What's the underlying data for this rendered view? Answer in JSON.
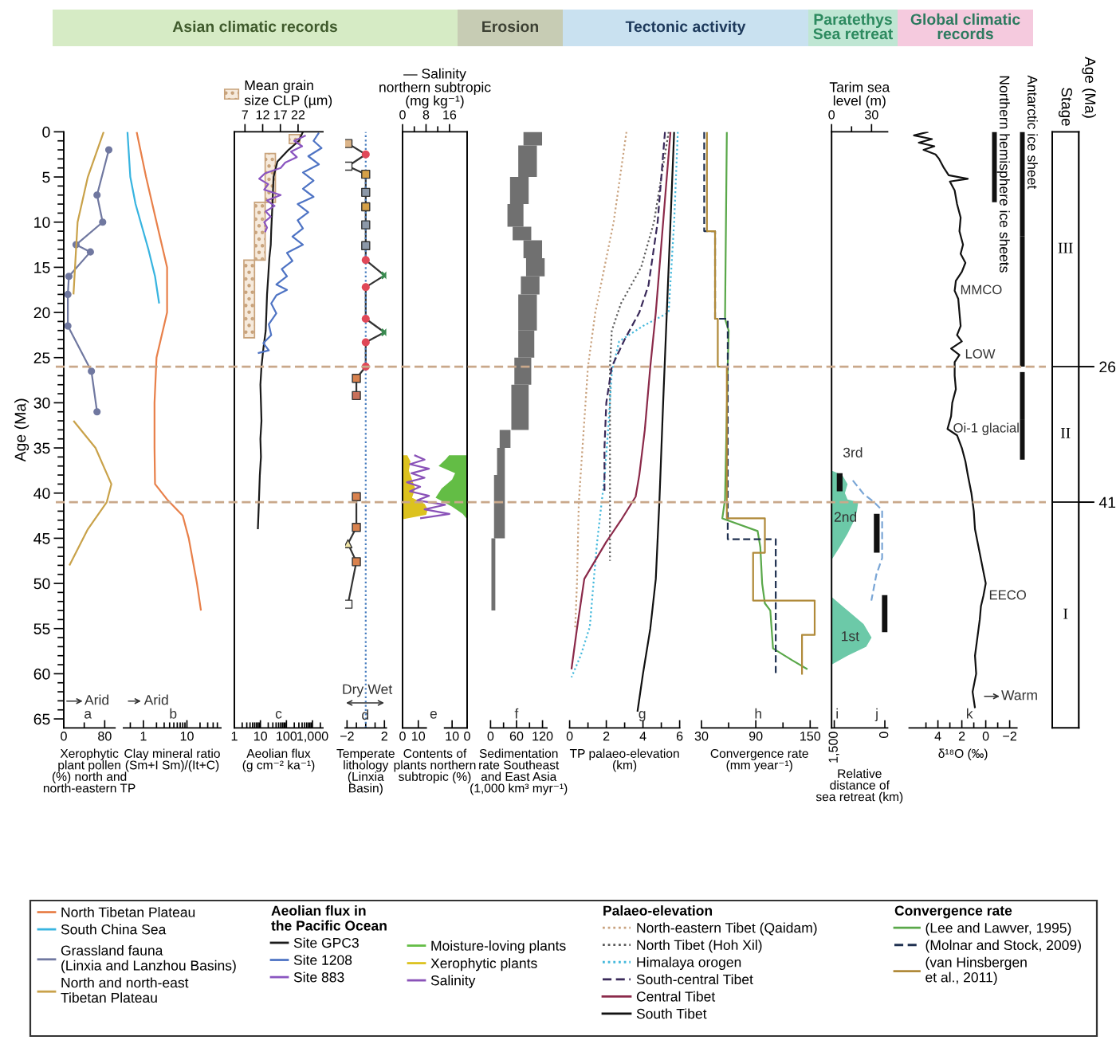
{
  "chart_data": [
    {
      "type": "line",
      "orientation": "horizontal",
      "ylabel": "Age (Ma)",
      "xlabel": "Xerophytic\nplant pollen\n(%) north and\nnorth-eastern TP",
      "xlim": [
        0,
        100
      ],
      "xticks": [
        0,
        {
          "value": 40,
          "label": null
        },
        80
      ],
      "ylim": [
        66,
        0
      ],
      "yticks": [
        0,
        {
          "value": 1,
          "label": null
        },
        {
          "value": 2,
          "label": null
        },
        {
          "value": 3,
          "label": null
        },
        {
          "value": 4,
          "label": null
        },
        5,
        {
          "value": 6,
          "label": null
        },
        {
          "value": 7,
          "label": null
        },
        {
          "value": 8,
          "label": null
        },
        {
          "value": 9,
          "label": null
        },
        10,
        {
          "value": 11,
          "label": null
        },
        {
          "value": 12,
          "label": null
        },
        {
          "value": 13,
          "label": null
        },
        {
          "value": 14,
          "label": null
        },
        15,
        {
          "value": 16,
          "label": null
        },
        {
          "value": 17,
          "label": null
        },
        {
          "value": 18,
          "label": null
        },
        {
          "value": 19,
          "label": null
        },
        20,
        {
          "value": 21,
          "label": null
        },
        {
          "value": 22,
          "label": null
        },
        {
          "value": 23,
          "label": null
        },
        {
          "value": 24,
          "label": null
        },
        25,
        {
          "value": 26,
          "label": null
        },
        {
          "value": 27,
          "label": null
        },
        {
          "value": 28,
          "label": null
        },
        {
          "value": 29,
          "label": null
        },
        30,
        {
          "value": 31,
          "label": null
        },
        {
          "value": 32,
          "label": null
        },
        {
          "value": 33,
          "label": null
        },
        {
          "value": 34,
          "label": null
        },
        35,
        {
          "value": 36,
          "label": null
        },
        {
          "value": 37,
          "label": null
        },
        {
          "value": 38,
          "label": null
        },
        {
          "value": 39,
          "label": null
        },
        40,
        {
          "value": 41,
          "label": null
        },
        {
          "value": 42,
          "label": null
        },
        {
          "value": 43,
          "label": null
        },
        {
          "value": 44,
          "label": null
        },
        45,
        {
          "value": 46,
          "label": null
        },
        {
          "value": 47,
          "label": null
        },
        {
          "value": 48,
          "label": null
        },
        {
          "value": 49,
          "label": null
        },
        50,
        {
          "value": 51,
          "label": null
        },
        {
          "value": 52,
          "label": null
        },
        {
          "value": 53,
          "label": null
        },
        {
          "value": 54,
          "label": null
        },
        55,
        {
          "value": 56,
          "label": null
        },
        {
          "value": 57,
          "label": null
        },
        {
          "value": 58,
          "label": null
        },
        {
          "value": 59,
          "label": null
        },
        60,
        {
          "value": 61,
          "label": null
        },
        {
          "value": 62,
          "label": null
        },
        {
          "value": 63,
          "label": null
        },
        {
          "value": 64,
          "label": null
        },
        65
      ],
      "legend": "bottom",
      "ref_lines": [
        {
          "axis": "y",
          "value": 26,
          "color": "#c9a88a",
          "line_style": "dashed"
        },
        {
          "axis": "y",
          "value": 41,
          "color": "#c9a88a",
          "line_style": "dashed"
        }
      ],
      "annotations": [
        "Arid",
        "a"
      ],
      "series": [
        {
          "name": "Grassland fauna\n(Linxia and Lanzhou Basins)",
          "color": "#7078a0",
          "marker": "circle",
          "x": [
            2,
            7,
            10,
            12.5,
            13.3,
            16,
            18,
            21.5,
            26.5,
            31
          ],
          "values": [
            88,
            65,
            76,
            24,
            52,
            10,
            8,
            8,
            54,
            65
          ]
        },
        {
          "name": "North and north-east\nTibetan Plateau",
          "color": "#c9a24a",
          "x": [
            0,
            5,
            10,
            15,
            18,
            25,
            32,
            35,
            39,
            41,
            44,
            48
          ],
          "values": [
            78,
            47,
            27,
            22,
            19,
            null,
            19,
            62,
            93,
            84,
            47,
            11
          ]
        }
      ]
    },
    {
      "type": "line",
      "orientation": "horizontal",
      "log": "x",
      "xlabel": "Clay mineral ratio\n(Sm+I Sm)/(It+C)",
      "xlim": [
        0.35,
        60
      ],
      "xticks": [
        {
          "value": 0.5,
          "label": null
        },
        1,
        {
          "value": 2,
          "label": null
        },
        {
          "value": 3,
          "label": null
        },
        {
          "value": 4,
          "label": null
        },
        {
          "value": 5,
          "label": null
        },
        {
          "value": 6,
          "label": null
        },
        {
          "value": 7,
          "label": null
        },
        {
          "value": 8,
          "label": null
        },
        {
          "value": 9,
          "label": null
        },
        10,
        {
          "value": 20,
          "label": null
        },
        {
          "value": 30,
          "label": null
        },
        {
          "value": 40,
          "label": null
        },
        {
          "value": 50,
          "label": null
        }
      ],
      "ylim": [
        66,
        0
      ],
      "tick_labels": "x",
      "legend": "bottom",
      "annotations": [
        "Arid",
        "b"
      ],
      "series": [
        {
          "name": "North Tibetan Plateau",
          "color": "#e8804a",
          "x": [
            0,
            5,
            10,
            15,
            20,
            25,
            30,
            35,
            39,
            40.7,
            42.5,
            45,
            50,
            53
          ],
          "values": [
            0.7,
            1.15,
            2.0,
            3.5,
            3.5,
            2.0,
            1.8,
            1.8,
            1.85,
            3.5,
            8,
            11,
            17,
            21
          ]
        },
        {
          "name": "South China Sea",
          "color": "#38b4e0",
          "x": [
            0,
            5,
            8,
            13,
            16,
            19
          ],
          "values": [
            0.43,
            0.5,
            0.66,
            1.3,
            1.85,
            2.3
          ]
        }
      ]
    },
    {
      "type": "line",
      "orientation": "horizontal",
      "log": "x",
      "title": "Asian climatic records",
      "xlabel": "Aeolian flux\n(g cm⁻² ka⁻¹)",
      "xlim": [
        1,
        2500
      ],
      "xticks": [
        1,
        {
          "value": 2,
          "label": null
        },
        {
          "value": 3,
          "label": null
        },
        {
          "value": 4,
          "label": null
        },
        {
          "value": 5,
          "label": null
        },
        {
          "value": 6,
          "label": null
        },
        {
          "value": 7,
          "label": null
        },
        {
          "value": 8,
          "label": null
        },
        {
          "value": 9,
          "label": null
        },
        10,
        {
          "value": 20,
          "label": null
        },
        {
          "value": 30,
          "label": null
        },
        {
          "value": 40,
          "label": null
        },
        {
          "value": 50,
          "label": null
        },
        {
          "value": 60,
          "label": null
        },
        {
          "value": 70,
          "label": null
        },
        {
          "value": 80,
          "label": null
        },
        {
          "value": 90,
          "label": null
        },
        100,
        {
          "value": 200,
          "label": null
        },
        {
          "value": 300,
          "label": null
        },
        {
          "value": 400,
          "label": null
        },
        {
          "value": 500,
          "label": null
        },
        {
          "value": 600,
          "label": null
        },
        {
          "value": 700,
          "label": null
        },
        {
          "value": 800,
          "label": null
        },
        {
          "value": 900,
          "label": null
        },
        {
          "value": 1000,
          "label": "1,000"
        },
        {
          "value": 2000,
          "label": null
        }
      ],
      "x2lim": [
        4,
        29
      ],
      "x2ticks": [
        7,
        12,
        17,
        22
      ],
      "ylim": [
        66,
        0
      ],
      "tick_labels": "x",
      "legend": "bottom",
      "legend_title": "Aeolian flux in\nthe Pacific Ocean",
      "annotations": [
        "c"
      ],
      "series": [
        {
          "name": "Site GPC3",
          "color": "#1a1a1a",
          "x": [
            0,
            1,
            2,
            3.3,
            5,
            7,
            9,
            11,
            12.5,
            14,
            16,
            18,
            20,
            22,
            24,
            26,
            28,
            30,
            32,
            34,
            36,
            38,
            40,
            42,
            44
          ],
          "values": [
            430,
            300,
            120,
            45,
            32,
            30,
            28,
            26,
            25,
            22,
            20,
            18,
            17,
            16,
            13,
            11,
            10,
            10.5,
            11,
            10,
            10.5,
            9.5,
            9,
            8.5,
            8
          ]
        },
        {
          "name": "Site 1208",
          "color": "#4f74c4",
          "x": [
            0.1,
            1.0,
            1.8,
            2.7,
            3.6,
            4.5,
            5.4,
            6.3,
            7.2,
            8.0,
            8.9,
            9.8,
            10.7,
            11.6,
            12.5,
            13.4,
            14.3,
            15.2,
            16.0,
            16.9,
            17.5,
            18.1,
            19.0,
            20.1,
            21.3,
            22.5,
            23.4,
            24.2,
            24.5
          ],
          "values": [
            1760,
            1100,
            2230,
            690,
            1760,
            430,
            1100,
            430,
            1100,
            270,
            690,
            270,
            430,
            170,
            430,
            105,
            170,
            66,
            105,
            41,
            105,
            41,
            26,
            41,
            21,
            26,
            13,
            21,
            8
          ]
        },
        {
          "name": "Site 883",
          "color": "#8a55c0",
          "x": [
            0.4,
            1.0,
            1.6,
            2.2,
            2.8,
            3.4,
            4.0,
            4.6,
            5.2,
            5.8,
            6.4,
            7.0,
            7.6,
            8.2,
            8.8,
            9.4,
            10.0,
            10.6,
            11.1
          ],
          "values": [
            550,
            200,
            400,
            150,
            250,
            90,
            60,
            15,
            9,
            20,
            14,
            60,
            18,
            35,
            16,
            25,
            14,
            18,
            15
          ]
        },
        {
          "name": "Mean grain\nsize CLP (µm)",
          "type": "histogram",
          "axis": "x2",
          "color": "#c8a27a",
          "bins": [
            0.3,
            1.3,
            2.4,
            7.8,
            14.2,
            22.8
          ],
          "base": [
            19.5,
            null,
            12.7,
            9.7,
            6.7
          ],
          "values": [
            3,
            null,
            2.9,
            3,
            3
          ]
        }
      ]
    },
    {
      "type": "scatter",
      "orientation": "horizontal",
      "xlabel": "Temperate\nlithology\n(Linxia\nBasin)",
      "xlim": [
        -2.2,
        2.2
      ],
      "xticks": [
        {
          "value": -2,
          "label": "−2"
        },
        {
          "value": -1,
          "label": null
        },
        {
          "value": 0,
          "label": null
        },
        {
          "value": 1,
          "label": null
        },
        2
      ],
      "ylim": [
        66,
        0
      ],
      "tick_labels": "x",
      "ref_lines": [
        {
          "axis": "x",
          "value": 0,
          "color": "#4a7fc0",
          "line_style": "dotted"
        }
      ],
      "annotations": [
        "Dry",
        "Wet",
        "d"
      ],
      "series": [
        {
          "type": "line",
          "color": "#333333",
          "marker": "none",
          "x": [
            1.3,
            2.5,
            3.8,
            4.7,
            6.7,
            8.3,
            10.3,
            12.6,
            14.2,
            15.9,
            17.2,
            20.7,
            22.2,
            23.3,
            26.0,
            27.3,
            29.2,
            35,
            40.4,
            43.8,
            45.6,
            47.6,
            52.3
          ],
          "values": [
            -1.9,
            0,
            -1.9,
            0,
            0,
            0,
            0,
            0,
            0,
            2.0,
            0,
            0,
            2.0,
            0,
            0,
            -1.0,
            -1.0,
            null,
            -1.0,
            -1.0,
            -1.9,
            -1.0,
            -1.9
          ]
        },
        {
          "marker": "square",
          "x": [
            1.3,
            3.8,
            4.7,
            6.7,
            8.3,
            10.3,
            12.6,
            27.3,
            29.2,
            40.4,
            43.8,
            47.6,
            52.3
          ],
          "values": [
            -1.9,
            -1.9,
            0,
            0,
            0,
            0,
            0,
            -1.0,
            -1.0,
            -1.0,
            -1.0,
            -1.0,
            -1.9
          ],
          "colors": [
            "#dcb58a",
            "#ffffff",
            "#d4a048",
            "#8c98a8",
            "#d4a048",
            "#8c98a8",
            "#8c98a8",
            "#d9824e",
            "#c8705a",
            "#d9824e",
            "#d9824e",
            "#d9824e",
            "#ffffff"
          ]
        },
        {
          "marker": "circle",
          "color": "#e04858",
          "x": [
            2.5,
            14.2,
            17.2,
            20.7,
            23.3,
            26.0
          ],
          "values": [
            0,
            0,
            0,
            0,
            0,
            0
          ]
        },
        {
          "marker": "cross",
          "color": "#3a8a50",
          "x": [
            15.9,
            22.2
          ],
          "values": [
            2.0,
            2.0
          ]
        },
        {
          "marker": "triangle",
          "color": "#f2e6a8",
          "x": [
            45.6
          ],
          "values": [
            -1.9
          ]
        }
      ]
    },
    {
      "type": "area",
      "orientation": "horizontal",
      "xlim": [
        43,
        0
      ],
      "xticks": [
        10,
        0
      ],
      "ylim": [
        66,
        0
      ],
      "tick_labels": "x",
      "legend": "bottom",
      "series": [
        {
          "name": "Moisture-loving plants",
          "color": "#63bd45",
          "x": [
            35.8,
            36.2,
            37,
            37.8,
            38.5,
            39.5,
            40.5,
            41.5,
            42.3,
            42.9
          ],
          "values": [
            12,
            14,
            19,
            8,
            10,
            17,
            21,
            10,
            3,
            0
          ]
        }
      ]
    },
    {
      "type": "area",
      "orientation": "horizontal",
      "xlabel": "Contents of\nplants northern\nsubtropic (%)",
      "xlim": [
        0,
        41
      ],
      "xticks": [
        0,
        10
      ],
      "x2lim": [
        0,
        22
      ],
      "x2ticks": [
        0,
        {
          "value": 4,
          "label": null
        },
        8,
        {
          "value": 12,
          "label": null
        },
        16
      ],
      "x2label": "— Salinity\nnorthern subtropic\n(mg kg⁻¹)",
      "ylim": [
        66,
        0
      ],
      "tick_labels": "x",
      "legend": "bottom",
      "annotations": [
        "e"
      ],
      "series": [
        {
          "name": "Xerophytic plants",
          "color": "#dcc21e",
          "x": [
            35.8,
            36.5,
            37.5,
            38.5,
            39.5,
            40.5,
            41.2,
            41.8,
            42.4,
            42.9
          ],
          "values": [
            3,
            5,
            4,
            6,
            8,
            6,
            14,
            16,
            15,
            0
          ]
        },
        {
          "name": "Salinity",
          "type": "line",
          "axis": "x2",
          "color": "#8a52b8",
          "x": [
            35.8,
            36.3,
            36.8,
            37.3,
            37.8,
            38.3,
            38.8,
            39.3,
            39.8,
            40.3,
            40.8,
            41.3,
            41.8,
            42.3,
            42.8
          ],
          "values": [
            4,
            7.5,
            2.5,
            9,
            3,
            7.5,
            1.5,
            6,
            2.5,
            9,
            5,
            14.5,
            7.5,
            16,
            6
          ]
        }
      ]
    },
    {
      "type": "histogram",
      "orientation": "horizontal",
      "title": "Erosion",
      "xlabel": "Sedimentation\nrate Southeast\nand East Asia\n(1,000 km³ myr⁻¹)",
      "xlim": [
        0,
        130
      ],
      "xticks": [
        0,
        {
          "value": 30,
          "label": null
        },
        60,
        {
          "value": 90,
          "label": null
        },
        120
      ],
      "ylim": [
        66,
        0
      ],
      "tick_labels": "x",
      "annotations": [
        "f"
      ],
      "color": "#707070",
      "bins": [
        0,
        1.5,
        5,
        8,
        10.5,
        12,
        14,
        16,
        18,
        22,
        25,
        28,
        33,
        35,
        38,
        45,
        53
      ],
      "base": [
        76,
        64,
        45,
        39,
        51,
        76,
        82,
        70,
        64,
        64,
        55,
        48,
        21,
        15,
        8,
        2
      ],
      "values": [
        43,
        43,
        43,
        37,
        43,
        43,
        43,
        43,
        43,
        37,
        39,
        40,
        25,
        18,
        25,
        9
      ]
    },
    {
      "type": "line",
      "orientation": "horizontal",
      "title": "Tectonic activity",
      "xlabel": "TP palaeo-elevation\n(km)",
      "xlim": [
        0,
        6
      ],
      "xticks": [
        0,
        {
          "value": 1,
          "label": null
        },
        2,
        {
          "value": 3,
          "label": null
        },
        4,
        {
          "value": 5,
          "label": null
        },
        6
      ],
      "ylim": [
        66,
        0
      ],
      "tick_labels": "x",
      "legend": "bottom",
      "legend_title": "Palaeo-elevation",
      "annotations": [
        "g"
      ],
      "series": [
        {
          "name": "North-eastern Tibet (Qaidam)",
          "color": "#c9a27e",
          "line_style": "dotted",
          "x": [
            0,
            10,
            20,
            26,
            35,
            41,
            50,
            55
          ],
          "values": [
            3.1,
            2.4,
            1.4,
            1.0,
            0.7,
            0.5,
            0.4,
            0.3
          ]
        },
        {
          "name": "North Tibet (Hoh Xil)",
          "color": "#5a5a5a",
          "line_style": "dotted",
          "x": [
            0,
            10,
            15,
            19,
            22,
            26,
            35,
            41,
            47.5
          ],
          "values": [
            5.4,
            4.6,
            3.9,
            2.8,
            2.3,
            2.2,
            2.2,
            2.2,
            2.2
          ]
        },
        {
          "name": "Himalaya orogen",
          "color": "#45b9dc",
          "line_style": "dotted",
          "x": [
            0,
            10,
            20,
            21.5,
            23.2,
            26.6,
            33,
            38.3,
            45.4,
            50,
            54.8,
            58,
            60.4
          ],
          "values": [
            5.9,
            5.7,
            5.4,
            4.0,
            2.7,
            2.3,
            2.1,
            1.9,
            1.5,
            1.3,
            1.1,
            0.6,
            0.1
          ]
        },
        {
          "name": "South-central Tibet",
          "color": "#3a2a5a",
          "line_style": "dashed",
          "x": [
            0,
            10,
            17,
            20,
            23,
            26,
            30,
            35,
            40
          ],
          "values": [
            5.2,
            4.8,
            4.3,
            3.8,
            3.0,
            2.3,
            2.0,
            1.9,
            1.9
          ]
        },
        {
          "name": "Central Tibet",
          "color": "#8b2a4a",
          "x": [
            0,
            10,
            20,
            26,
            33,
            38,
            40.4,
            43,
            45.4,
            49.5,
            55,
            59.5
          ],
          "values": [
            5.5,
            5.1,
            4.7,
            4.4,
            4.1,
            3.8,
            3.6,
            2.8,
            2.0,
            0.8,
            0.4,
            0.1
          ]
        },
        {
          "name": "South Tibet",
          "color": "#111111",
          "x": [
            0,
            10,
            20,
            30,
            40.7,
            49.5,
            55,
            60,
            64.2
          ],
          "values": [
            5.7,
            5.5,
            5.3,
            5.1,
            4.9,
            4.7,
            4.4,
            4.0,
            3.7
          ]
        }
      ]
    },
    {
      "type": "line",
      "orientation": "horizontal",
      "xlabel": "Convergence rate\n(mm year⁻¹)",
      "xlim": [
        30,
        158
      ],
      "xticks": [
        30,
        {
          "value": 60,
          "label": null
        },
        90,
        {
          "value": 120,
          "label": null
        },
        150
      ],
      "ylim": [
        66,
        0
      ],
      "tick_labels": "x",
      "legend": "bottom",
      "legend_title": "Convergence rate",
      "annotations": [
        "h"
      ],
      "series": [
        {
          "name": "(Lee and Lawver, 1995)",
          "color": "#5aa84a",
          "x": [
            0,
            20.7,
            22,
            26,
            40.7,
            42.8,
            44.2,
            46,
            50,
            52.2,
            53,
            57.2,
            58.5,
            59.5
          ],
          "values": [
            58,
            56,
            60,
            59,
            56,
            53,
            92,
            95,
            97,
            100,
            106,
            109,
            130,
            147
          ]
        },
        {
          "name": "(Molnar and Stock, 2009)",
          "color": "#1f3050",
          "line_style": "dashed",
          "x": [
            0,
            11,
            11,
            20.7,
            20.7,
            45.1,
            45.1,
            60.1
          ],
          "values": [
            33,
            33,
            45,
            45,
            59,
            59,
            112,
            112
          ]
        },
        {
          "name": "(van Hinsbergen\net al., 2011)",
          "color": "#b08a3a",
          "x": [
            0,
            11,
            11,
            20.7,
            20.7,
            26,
            26,
            42.8,
            42.8,
            46.6,
            46.6,
            51.9,
            51.9,
            55.7,
            55.7,
            60.1
          ],
          "values": [
            36,
            36,
            45,
            45,
            48,
            48,
            58,
            58,
            100,
            100,
            87,
            87,
            155,
            155,
            141,
            141
          ]
        }
      ]
    },
    {
      "type": "area",
      "orientation": "horizontal",
      "title": "Paratethys\nSea retreat",
      "xlabel": "Relative\ndistance of\nsea retreat (km)",
      "xlim": [
        1580,
        -80
      ],
      "xticks": [
        {
          "value": 1500,
          "label": "1,500"
        },
        0
      ],
      "x2lim": [
        0,
        42
      ],
      "x2ticks": [
        0,
        {
          "value": 15,
          "label": null
        },
        30
      ],
      "x2label": "Tarim sea\nlevel (m)",
      "ylim": [
        66,
        0
      ],
      "tick_labels": "x",
      "annotations": [
        "1st",
        "2nd",
        "3rd",
        "i",
        "j"
      ],
      "series": [
        {
          "axis": "x2",
          "color": "#6cc9a8",
          "x": [
            37.5,
            38,
            39,
            40,
            40.7,
            41,
            42,
            43,
            44.5,
            46,
            47.4,
            49,
            51.5,
            53,
            54.5,
            56,
            57,
            58,
            59
          ],
          "values": [
            0,
            8,
            12,
            10,
            12,
            20,
            19,
            17,
            12,
            6,
            0,
            null,
            0,
            12,
            24,
            30,
            26,
            12,
            0
          ]
        },
        {
          "type": "line",
          "color": "#7aa6d6",
          "line_style": "dashed",
          "x": [
            38.6,
            40.1,
            41,
            41.9,
            44,
            47.2,
            49,
            51.9
          ],
          "values": [
            950,
            630,
            320,
            80,
            80,
            80,
            250,
            400
          ]
        },
        {
          "type": "line",
          "color": "#111111",
          "x": [
            37.8,
            39.8,
            40.5,
            42.3,
            46.6,
            49,
            51.3,
            55.4
          ],
          "values": [
            1340,
            1340,
            null,
            240,
            240,
            null,
            0,
            0
          ]
        }
      ]
    },
    {
      "type": "line",
      "orientation": "horizontal",
      "title": "Global climatic\nrecords",
      "xlabel": "δ¹⁸O (‰)",
      "xlim": [
        6.4,
        -2.6
      ],
      "xticks": [
        {
          "value": 5,
          "label": null
        },
        4,
        {
          "value": 3,
          "label": null
        },
        2,
        {
          "value": 1,
          "label": null
        },
        0,
        {
          "value": -1,
          "label": null
        },
        {
          "value": -2,
          "label": "−2"
        }
      ],
      "ylim": [
        66,
        0
      ],
      "tick_labels": "x",
      "annotations": [
        {
          "text": "MMCO",
          "x": 2.6,
          "y": 17.6
        },
        {
          "text": "LOW",
          "x": 2.2,
          "y": 24.7
        },
        {
          "text": "Oi-1 glacial",
          "x": 3.2,
          "y": 32.9
        },
        {
          "text": "EECO",
          "x": 0.2,
          "y": 51.4
        },
        "Warm",
        "k"
      ],
      "series": [
        {
          "color": "#111111",
          "x": [
            0,
            0.4,
            0.8,
            1.2,
            1.6,
            2.0,
            2.5,
            3.0,
            4.0,
            4.8,
            5.2,
            5.5,
            6.5,
            8,
            9.5,
            11,
            12.5,
            13.5,
            14.5,
            15.5,
            16.5,
            17.6,
            18.5,
            20,
            21.5,
            22.5,
            23.2,
            24,
            24.7,
            25.5,
            27,
            28.5,
            30,
            31.5,
            32.9,
            33.6,
            35,
            36.5,
            38,
            40,
            42,
            44,
            46,
            48,
            50,
            51.4,
            52.5,
            54,
            56,
            58,
            60,
            62,
            63.8
          ],
          "values": [
            4.8,
            6.0,
            4.5,
            5.6,
            4.3,
            5.2,
            4.2,
            3.9,
            3.5,
            3.1,
            1.5,
            3.0,
            2.6,
            2.4,
            2.1,
            2.2,
            1.9,
            2.1,
            1.7,
            2.0,
            2.5,
            2.6,
            2.3,
            2.2,
            2.1,
            2.4,
            2.0,
            2.9,
            2.2,
            2.6,
            2.6,
            2.5,
            2.8,
            2.9,
            3.2,
            2.4,
            2.0,
            1.7,
            1.5,
            1.2,
            1.0,
            0.9,
            0.6,
            0.3,
            0.0,
            0.2,
            0.4,
            0.5,
            0.7,
            0.9,
            0.8,
            1.1,
            0.9
          ]
        }
      ]
    },
    {
      "type": "bar",
      "categories": [
        "Northern hemisphere ice sheets",
        "Antarctic ice sheet"
      ],
      "ylim": [
        66,
        0
      ],
      "tick_labels": "x",
      "series": [
        {
          "color": "#111111",
          "line_style": "solid",
          "base": [
            0,
            0
          ],
          "values": [
            2.7,
            11.6
          ]
        },
        {
          "color": "#111111",
          "line_style": "dotted",
          "base": [
            2.7,
            11.6
          ],
          "values": [
            5.1,
            14.4
          ]
        },
        {
          "color": "#111111",
          "line_style": "solid",
          "base": [
            null,
            26.6
          ],
          "values": [
            null,
            5.3
          ]
        },
        {
          "color": "#111111",
          "line_style": "dotted",
          "base": [
            null,
            31.9
          ],
          "values": [
            null,
            4.4
          ]
        }
      ]
    },
    {
      "type": "bar",
      "stacked": true,
      "title": "Stage",
      "ylabel": "Age (Ma)",
      "categories": [
        null
      ],
      "ylim": [
        66,
        0
      ],
      "yticks": [
        26,
        41
      ],
      "tick_labels": "y",
      "series": [
        {
          "name": "III",
          "color": "#ffffff",
          "values": [
            26
          ]
        },
        {
          "name": "II",
          "color": "#ffffff",
          "values": [
            15
          ]
        },
        {
          "name": "I",
          "color": "#ffffff",
          "values": [
            25
          ]
        }
      ]
    }
  ]
}
